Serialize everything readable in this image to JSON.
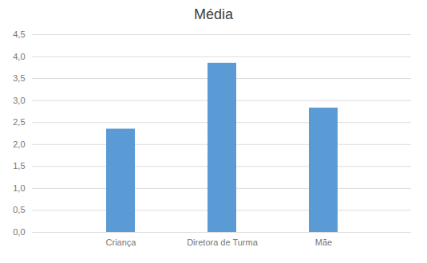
{
  "chart_data": {
    "type": "bar",
    "title": "Média",
    "categories": [
      "Criança",
      "Diretora de Turma",
      "Mãe"
    ],
    "values": [
      2.35,
      3.85,
      2.83
    ],
    "color": "#5B9BD5",
    "ylim": [
      0,
      4.5
    ],
    "yticks": [
      {
        "value": 0.0,
        "label": "0,0"
      },
      {
        "value": 0.5,
        "label": "0,5"
      },
      {
        "value": 1.0,
        "label": "1,0"
      },
      {
        "value": 1.5,
        "label": "1,5"
      },
      {
        "value": 2.0,
        "label": "2,0"
      },
      {
        "value": 2.5,
        "label": "2,5"
      },
      {
        "value": 3.0,
        "label": "3,0"
      },
      {
        "value": 3.5,
        "label": "3,5"
      },
      {
        "value": 4.0,
        "label": "4,0"
      },
      {
        "value": 4.5,
        "label": "4,5"
      }
    ],
    "grid": true
  }
}
